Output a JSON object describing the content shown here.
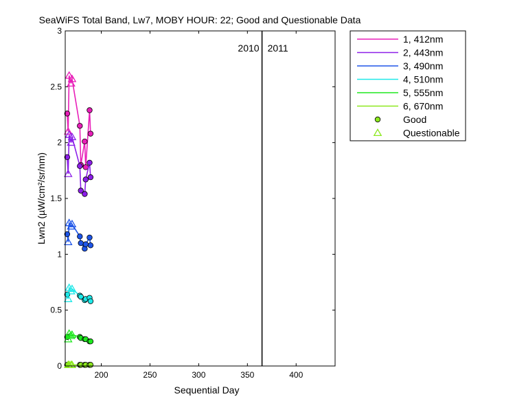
{
  "chart_data": {
    "type": "line",
    "title": "SeaWiFS Total Band, Lw7, MOBY HOUR: 22;  Good and Questionable Data",
    "xlabel": "Sequential Day",
    "ylabel": "Lwn2 (µW/cm²/sr/nm)",
    "xlim": [
      163,
      440
    ],
    "ylim": [
      0,
      3
    ],
    "xticks": [
      200,
      250,
      300,
      350,
      400
    ],
    "yticks": [
      0,
      0.5,
      1,
      1.5,
      2,
      2.5,
      3
    ],
    "grid": false,
    "legend_position": "outside-top-right",
    "year_marker": {
      "x": 365,
      "left_label": "2010",
      "right_label": "2011"
    },
    "series": [
      {
        "name": "1, 412nm",
        "color": "#e81eb8",
        "x": [
          165,
          166,
          167,
          169,
          170,
          178,
          179,
          183,
          184,
          188,
          189
        ],
        "y": [
          2.26,
          2.1,
          2.6,
          2.53,
          2.57,
          2.15,
          1.8,
          2.01,
          1.78,
          2.29,
          2.08
        ],
        "flag": [
          "g",
          "q",
          "q",
          "q",
          "q",
          "g",
          "g",
          "g",
          "g",
          "g",
          "g"
        ]
      },
      {
        "name": "2, 443nm",
        "color": "#8c1ee8",
        "x": [
          165,
          166,
          167,
          169,
          170,
          178,
          179,
          183,
          184,
          188,
          189
        ],
        "y": [
          1.87,
          1.72,
          2.07,
          2.0,
          2.05,
          1.79,
          1.57,
          1.54,
          1.67,
          1.82,
          1.69
        ],
        "flag": [
          "g",
          "q",
          "q",
          "q",
          "q",
          "g",
          "g",
          "g",
          "g",
          "g",
          "g"
        ]
      },
      {
        "name": "3, 490nm",
        "color": "#1e55e8",
        "x": [
          165,
          166,
          167,
          169,
          170,
          178,
          179,
          183,
          184,
          188,
          189
        ],
        "y": [
          1.18,
          1.11,
          1.28,
          1.25,
          1.27,
          1.16,
          1.1,
          1.05,
          1.09,
          1.15,
          1.08
        ],
        "flag": [
          "g",
          "q",
          "q",
          "q",
          "q",
          "g",
          "g",
          "g",
          "g",
          "g",
          "g"
        ]
      },
      {
        "name": "4, 510nm",
        "color": "#1ee8e8",
        "x": [
          165,
          166,
          167,
          169,
          170,
          178,
          179,
          183,
          184,
          188,
          189
        ],
        "y": [
          0.64,
          0.6,
          0.7,
          0.67,
          0.69,
          0.63,
          0.62,
          0.59,
          0.6,
          0.61,
          0.58
        ],
        "flag": [
          "g",
          "q",
          "q",
          "q",
          "q",
          "g",
          "g",
          "g",
          "g",
          "g",
          "g"
        ]
      },
      {
        "name": "5, 555nm",
        "color": "#1ee81e",
        "x": [
          165,
          166,
          167,
          169,
          170,
          178,
          179,
          183,
          184,
          188,
          189
        ],
        "y": [
          0.26,
          0.24,
          0.29,
          0.27,
          0.28,
          0.26,
          0.25,
          0.24,
          0.24,
          0.22,
          0.22
        ],
        "flag": [
          "g",
          "q",
          "q",
          "q",
          "q",
          "g",
          "g",
          "g",
          "g",
          "g",
          "g"
        ]
      },
      {
        "name": "6, 670nm",
        "color": "#8ce81e",
        "x": [
          165,
          166,
          167,
          169,
          170,
          178,
          179,
          183,
          184,
          188,
          189
        ],
        "y": [
          0.01,
          0.01,
          0.01,
          0.01,
          0.01,
          0.01,
          0.01,
          0.01,
          0.01,
          0.01,
          0.01
        ],
        "flag": [
          "g",
          "q",
          "q",
          "q",
          "q",
          "g",
          "g",
          "g",
          "g",
          "g",
          "g"
        ]
      }
    ],
    "marker_legend": [
      {
        "label": "Good",
        "shape": "circle",
        "color": "#8ce81e"
      },
      {
        "label": "Questionable",
        "shape": "triangle",
        "color": "#8ce81e"
      }
    ]
  }
}
